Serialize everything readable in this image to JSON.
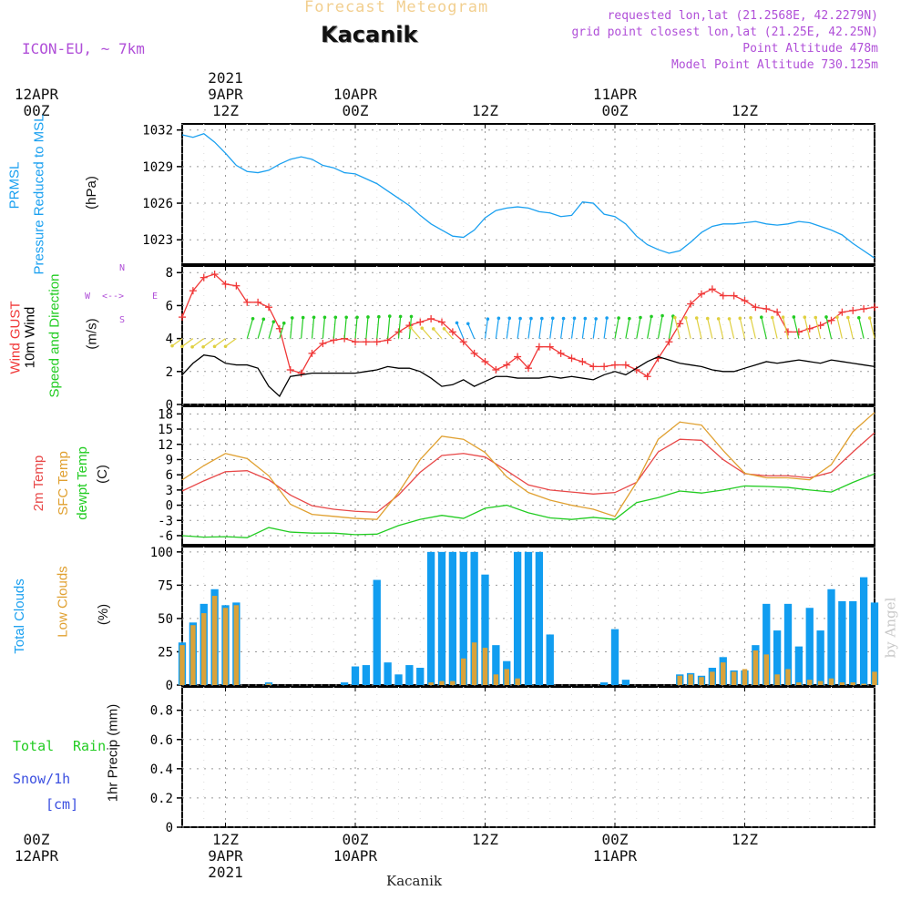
{
  "header": {
    "title_faded": "Forecast Meteogram",
    "station": "Kacanik",
    "model": "ICON-EU, ~ 7km",
    "requested": "requested lon,lat (21.2568E, 42.2279N)",
    "gridpoint": "grid point closest lon,lat (21.25E, 42.25N)",
    "altitude": "Point Altitude 478m",
    "model_altitude": "Model Point Altitude 730.125m"
  },
  "time_axis": {
    "top": [
      {
        "l1": "2021",
        "l2": "9APR",
        "l3": "12Z"
      },
      {
        "l1": "",
        "l2": "10APR",
        "l3": "00Z"
      },
      {
        "l1": "",
        "l2": "",
        "l3": "12Z"
      },
      {
        "l1": "",
        "l2": "11APR",
        "l3": "00Z"
      },
      {
        "l1": "",
        "l2": "",
        "l3": "12Z"
      },
      {
        "l1": "",
        "l2": "12APR",
        "l3": "00Z"
      }
    ],
    "bottom": [
      {
        "l1": "12Z",
        "l2": "9APR",
        "l3": "2021"
      },
      {
        "l1": "00Z",
        "l2": "10APR",
        "l3": ""
      },
      {
        "l1": "12Z",
        "l2": "",
        "l3": ""
      },
      {
        "l1": "00Z",
        "l2": "11APR",
        "l3": ""
      },
      {
        "l1": "12Z",
        "l2": "",
        "l3": ""
      },
      {
        "l1": "00Z",
        "l2": "12APR",
        "l3": ""
      }
    ],
    "footer": "Kacanik"
  },
  "labels": {
    "prmsl": "PRMSL",
    "prmsl2": "Pressure Reduced to MSL",
    "hpa": "(hPa)",
    "gust": "Wind GUST",
    "wind10": "10m Wind",
    "windsd": "Speed and Direction",
    "ms": "(m/s)",
    "compass_w": "W",
    "compass_e": "E",
    "compass_n": "N",
    "compass_s": "S",
    "t2m": "2m Temp",
    "sfc": "SFC Temp",
    "dew": "dewpt Temp",
    "degc": "(C)",
    "tcc": "Total Clouds",
    "lcc": "Low Clouds",
    "pct": "(%)",
    "total": "Total",
    "rain": "Rain",
    "snow": "Snow/1h",
    "cm": "[cm]",
    "precip": "1hr Precip (mm)",
    "watermark": "by Angel"
  },
  "colors": {
    "pressure": "#1aa0f0",
    "gust": "#f03838",
    "wind": "#000000",
    "t2m": "#e84848",
    "sfc": "#e0a030",
    "dew": "#22cc22",
    "tcc": "#119df0",
    "lcc": "#d9a23a",
    "purple": "#b04fd8",
    "green": "#22cc22",
    "blue": "#3b4fe0"
  },
  "chart_data": [
    {
      "type": "line",
      "title": "PRMSL Pressure Reduced to MSL",
      "ylabel": "(hPa)",
      "ylim": [
        1021,
        1032.5
      ],
      "yticks": [
        1023,
        1026,
        1029,
        1032
      ],
      "series": [
        {
          "name": "PRMSL",
          "color": "#1aa0f0",
          "x": [
            0,
            1,
            2,
            3,
            4,
            5,
            6,
            7,
            8,
            9,
            10,
            11,
            12,
            13,
            14,
            15,
            16,
            17,
            18,
            19,
            20,
            21,
            22,
            23,
            24,
            25,
            26,
            27,
            28,
            29,
            30,
            31,
            32,
            33,
            34,
            35,
            36,
            37,
            38,
            39,
            40,
            41,
            42,
            43,
            44,
            45,
            46,
            47,
            48,
            49,
            50,
            51,
            52,
            53,
            54,
            55,
            56,
            57,
            58,
            59,
            60,
            61,
            62,
            63,
            64
          ],
          "values": [
            1031.6,
            1031.4,
            1031.7,
            1031.0,
            1030.1,
            1029.1,
            1028.6,
            1028.5,
            1028.7,
            1029.2,
            1029.6,
            1029.8,
            1029.6,
            1029.1,
            1028.9,
            1028.5,
            1028.4,
            1028.0,
            1027.6,
            1027.0,
            1026.4,
            1025.8,
            1025.0,
            1024.3,
            1023.8,
            1023.3,
            1023.2,
            1023.8,
            1024.8,
            1025.4,
            1025.6,
            1025.7,
            1025.6,
            1025.3,
            1025.2,
            1024.9,
            1025.0,
            1026.1,
            1026.0,
            1025.1,
            1024.9,
            1024.3,
            1023.3,
            1022.6,
            1022.2,
            1021.9,
            1022.1,
            1022.8,
            1023.6,
            1024.1,
            1024.3,
            1024.3,
            1024.4,
            1024.5,
            1024.3,
            1024.2,
            1024.3,
            1024.5,
            1024.4,
            1024.1,
            1023.8,
            1023.4,
            1022.7,
            1022.1,
            1021.5
          ]
        }
      ]
    },
    {
      "type": "line",
      "title": "Wind GUST / 10m Wind Speed and Direction",
      "ylabel": "(m/s)",
      "ylim": [
        0,
        8.4
      ],
      "yticks": [
        0,
        2,
        4,
        6,
        8
      ],
      "series": [
        {
          "name": "Wind GUST",
          "color": "#f03838",
          "marker": "+",
          "x": [
            0,
            1,
            2,
            3,
            4,
            5,
            6,
            7,
            8,
            9,
            10,
            11,
            12,
            13,
            14,
            15,
            16,
            17,
            18,
            19,
            20,
            21,
            22,
            23,
            24,
            25,
            26,
            27,
            28,
            29,
            30,
            31,
            32,
            33,
            34,
            35,
            36,
            37,
            38,
            39,
            40,
            41,
            42,
            43,
            44,
            45,
            46,
            47,
            48,
            49,
            50,
            51,
            52,
            53,
            54,
            55,
            56,
            57,
            58,
            59,
            60,
            61,
            62,
            63,
            64
          ],
          "values": [
            5.3,
            6.9,
            7.7,
            7.9,
            7.3,
            7.2,
            6.2,
            6.2,
            5.9,
            4.6,
            2.1,
            1.9,
            3.1,
            3.7,
            3.9,
            4.0,
            3.8,
            3.8,
            3.8,
            3.9,
            4.4,
            4.8,
            5.0,
            5.2,
            5.0,
            4.4,
            3.8,
            3.1,
            2.6,
            2.1,
            2.4,
            2.9,
            2.2,
            3.5,
            3.5,
            3.1,
            2.8,
            2.6,
            2.3,
            2.3,
            2.4,
            2.4,
            2.1,
            1.7,
            2.8,
            3.8,
            4.9,
            6.1,
            6.7,
            7.0,
            6.6,
            6.6,
            6.3,
            5.9,
            5.8,
            5.6,
            4.4,
            4.4,
            4.6,
            4.8,
            5.1,
            5.6,
            5.7,
            5.8,
            5.9
          ]
        },
        {
          "name": "10m Wind",
          "color": "#000000",
          "x": [
            0,
            1,
            2,
            3,
            4,
            5,
            6,
            7,
            8,
            9,
            10,
            11,
            12,
            13,
            14,
            15,
            16,
            17,
            18,
            19,
            20,
            21,
            22,
            23,
            24,
            25,
            26,
            27,
            28,
            29,
            30,
            31,
            32,
            33,
            34,
            35,
            36,
            37,
            38,
            39,
            40,
            41,
            42,
            43,
            44,
            45,
            46,
            47,
            48,
            49,
            50,
            51,
            52,
            53,
            54,
            55,
            56,
            57,
            58,
            59,
            60,
            61,
            62,
            63,
            64
          ],
          "values": [
            1.8,
            2.5,
            3.0,
            2.9,
            2.5,
            2.4,
            2.4,
            2.2,
            1.1,
            0.5,
            1.7,
            1.8,
            1.9,
            1.9,
            1.9,
            1.9,
            1.9,
            2.0,
            2.1,
            2.3,
            2.2,
            2.2,
            2.0,
            1.6,
            1.1,
            1.2,
            1.5,
            1.1,
            1.4,
            1.7,
            1.7,
            1.6,
            1.6,
            1.6,
            1.7,
            1.6,
            1.7,
            1.6,
            1.5,
            1.8,
            2.0,
            1.8,
            2.2,
            2.6,
            2.9,
            2.7,
            2.5,
            2.4,
            2.3,
            2.1,
            2.0,
            2.0,
            2.2,
            2.4,
            2.6,
            2.5,
            2.6,
            2.7,
            2.6,
            2.5,
            2.7,
            2.6,
            2.5,
            2.4,
            2.3
          ]
        }
      ],
      "direction_arrows": "W <--> E, N/S compass; arrows shown for each hour"
    },
    {
      "type": "line",
      "title": "2m Temp / SFC Temp / dewpt Temp",
      "ylabel": "(C)",
      "ylim": [
        -7.8,
        19.5
      ],
      "yticks": [
        -6,
        -3,
        0,
        3,
        6,
        9,
        12,
        15,
        18
      ],
      "series": [
        {
          "name": "2m Temp",
          "color": "#e84848",
          "x": [
            0,
            2,
            4,
            6,
            8,
            10,
            12,
            14,
            16,
            18,
            20,
            22,
            24,
            26,
            28,
            30,
            32,
            34,
            36,
            38,
            40,
            42,
            44,
            46,
            48,
            50,
            52,
            54,
            56,
            58,
            60,
            62,
            64
          ],
          "values": [
            2.8,
            4.8,
            6.6,
            6.8,
            5.0,
            2.0,
            -0.1,
            -0.8,
            -1.2,
            -1.4,
            2.0,
            6.5,
            9.8,
            10.2,
            9.5,
            6.8,
            4.0,
            3.0,
            2.6,
            2.2,
            2.5,
            4.5,
            10.5,
            13.0,
            12.8,
            9.0,
            6.2,
            5.8,
            5.8,
            5.4,
            6.5,
            10.5,
            14.3
          ]
        },
        {
          "name": "SFC Temp",
          "color": "#e0a030",
          "x": [
            0,
            2,
            4,
            6,
            8,
            10,
            12,
            14,
            16,
            18,
            20,
            22,
            24,
            26,
            28,
            30,
            32,
            34,
            36,
            38,
            40,
            42,
            44,
            46,
            48,
            50,
            52,
            54,
            56,
            58,
            60,
            62,
            64
          ],
          "values": [
            5.0,
            7.8,
            10.2,
            9.2,
            5.8,
            0.2,
            -1.8,
            -2.2,
            -2.6,
            -2.8,
            2.5,
            9.0,
            13.6,
            13.0,
            10.4,
            5.6,
            2.5,
            1.0,
            0.0,
            -0.8,
            -2.2,
            4.5,
            13.0,
            16.4,
            15.8,
            10.8,
            6.3,
            5.4,
            5.4,
            5.0,
            8.0,
            14.5,
            18.3
          ]
        },
        {
          "name": "dewpt Temp",
          "color": "#22cc22",
          "x": [
            0,
            2,
            4,
            6,
            8,
            10,
            12,
            14,
            16,
            18,
            20,
            22,
            24,
            26,
            28,
            30,
            32,
            34,
            36,
            38,
            40,
            42,
            44,
            46,
            48,
            50,
            52,
            54,
            56,
            58,
            60,
            62,
            64
          ],
          "values": [
            -6.0,
            -6.3,
            -6.2,
            -6.4,
            -4.4,
            -5.3,
            -5.5,
            -5.5,
            -5.8,
            -5.7,
            -4.0,
            -2.8,
            -2.0,
            -2.6,
            -0.6,
            0.0,
            -1.5,
            -2.5,
            -2.8,
            -2.4,
            -2.8,
            0.5,
            1.5,
            2.8,
            2.4,
            3.0,
            3.8,
            3.7,
            3.5,
            3.0,
            2.6,
            4.5,
            6.2
          ]
        }
      ]
    },
    {
      "type": "bar",
      "title": "Total Clouds / Low Clouds",
      "ylabel": "(%)",
      "ylim": [
        0,
        104
      ],
      "yticks": [
        0,
        25,
        50,
        75,
        100
      ],
      "x": [
        0,
        1,
        2,
        3,
        4,
        5,
        6,
        7,
        8,
        9,
        10,
        11,
        12,
        13,
        14,
        15,
        16,
        17,
        18,
        19,
        20,
        21,
        22,
        23,
        24,
        25,
        26,
        27,
        28,
        29,
        30,
        31,
        32,
        33,
        34,
        35,
        36,
        37,
        38,
        39,
        40,
        41,
        42,
        43,
        44,
        45,
        46,
        47,
        48,
        49,
        50,
        51,
        52,
        53,
        54,
        55,
        56,
        57,
        58,
        59,
        60,
        61,
        62,
        63,
        64
      ],
      "series": [
        {
          "name": "Total Clouds",
          "color": "#119df0",
          "values": [
            32,
            47,
            61,
            72,
            60,
            62,
            0,
            0,
            2,
            0,
            0,
            0,
            0,
            0,
            0,
            2,
            14,
            15,
            79,
            17,
            8,
            15,
            13,
            100,
            100,
            100,
            100,
            100,
            83,
            30,
            18,
            100,
            100,
            100,
            38,
            0,
            0,
            0,
            0,
            2,
            42,
            4,
            0,
            0,
            0,
            0,
            8,
            9,
            7,
            13,
            21,
            11,
            11,
            30,
            61,
            41,
            61,
            29,
            58,
            41,
            72,
            63,
            63,
            81,
            62
          ]
        },
        {
          "name": "Low Clouds",
          "color": "#d9a23a",
          "values": [
            30,
            45,
            54,
            67,
            58,
            60,
            0,
            0,
            1,
            0,
            0,
            0,
            0,
            0,
            0,
            0,
            0,
            0,
            0,
            0,
            0,
            0,
            0,
            2,
            3,
            3,
            20,
            32,
            28,
            8,
            12,
            5,
            0,
            0,
            0,
            0,
            0,
            0,
            0,
            0,
            0,
            0,
            0,
            0,
            0,
            0,
            7,
            8,
            6,
            10,
            17,
            10,
            12,
            26,
            23,
            8,
            12,
            2,
            4,
            3,
            5,
            2,
            2,
            1,
            10
          ]
        }
      ]
    },
    {
      "type": "bar",
      "title": "1hr Precip",
      "ylabel": "1hr Precip (mm)",
      "ylim": [
        0,
        0.96
      ],
      "yticks": [
        0,
        0.2,
        0.4,
        0.6,
        0.8
      ],
      "series": [
        {
          "name": "Total Rain",
          "color": "#22cc22",
          "values": []
        },
        {
          "name": "Snow/1h [cm]",
          "color": "#3b4fe0",
          "values": []
        }
      ]
    }
  ]
}
